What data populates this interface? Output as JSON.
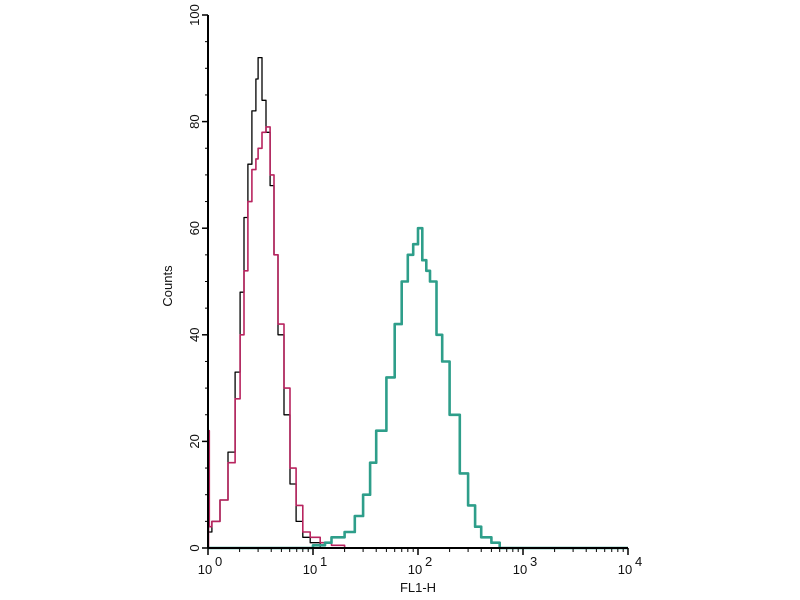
{
  "chart_data": {
    "type": "line",
    "title": "",
    "xlabel": "FL1-H",
    "ylabel": "Counts",
    "xscale": "log",
    "xlim": [
      1,
      10000
    ],
    "ylim": [
      0,
      100
    ],
    "grid": false,
    "x_ticks": [
      {
        "value": 1,
        "base": "10",
        "exp": "0"
      },
      {
        "value": 10,
        "base": "10",
        "exp": "1"
      },
      {
        "value": 100,
        "base": "10",
        "exp": "2"
      },
      {
        "value": 1000,
        "base": "10",
        "exp": "3"
      },
      {
        "value": 10000,
        "base": "10",
        "exp": "4"
      }
    ],
    "y_ticks": [
      "0",
      "20",
      "40",
      "60",
      "80",
      "100"
    ],
    "series": [
      {
        "color": "#000000",
        "x": [
          1.0,
          1.09,
          1.3,
          1.55,
          1.81,
          2.02,
          2.2,
          2.4,
          2.62,
          2.86,
          3.0,
          3.27,
          3.57,
          3.9,
          4.25,
          4.64,
          5.3,
          6.04,
          6.9,
          8.0,
          9.4,
          11.7,
          20
        ],
        "y": [
          3,
          5,
          9,
          18,
          33,
          48,
          62,
          72,
          82,
          88,
          92,
          84,
          78,
          68,
          55,
          40,
          25,
          12,
          5,
          2,
          1,
          0,
          0
        ]
      },
      {
        "color": "#b8245f",
        "x": [
          1.0,
          1.01,
          1.03,
          1.09,
          1.3,
          1.55,
          1.81,
          2.02,
          2.2,
          2.4,
          2.62,
          2.86,
          3.0,
          3.27,
          3.57,
          3.9,
          4.25,
          4.64,
          5.3,
          6.04,
          6.9,
          8.0,
          9.4,
          11.7,
          15,
          20,
          10000
        ],
        "y": [
          0,
          22,
          4,
          5,
          9,
          16,
          28,
          40,
          52,
          65,
          71,
          73,
          75,
          78,
          79,
          70,
          55,
          42,
          30,
          15,
          8,
          3,
          2,
          1,
          0.5,
          0,
          0
        ]
      },
      {
        "color": "#2e9e8a",
        "x": [
          1,
          10,
          13,
          15,
          20,
          25,
          30,
          35,
          40,
          50,
          60,
          70,
          80,
          90,
          100,
          110,
          120,
          130,
          150,
          170,
          200,
          250,
          300,
          350,
          400,
          500,
          600,
          10000
        ],
        "y": [
          0,
          0.5,
          1,
          2,
          3,
          6,
          10,
          16,
          22,
          32,
          42,
          50,
          55,
          57,
          60,
          54,
          52,
          50,
          40,
          35,
          25,
          14,
          8,
          4,
          2,
          1,
          0,
          0
        ]
      }
    ]
  }
}
